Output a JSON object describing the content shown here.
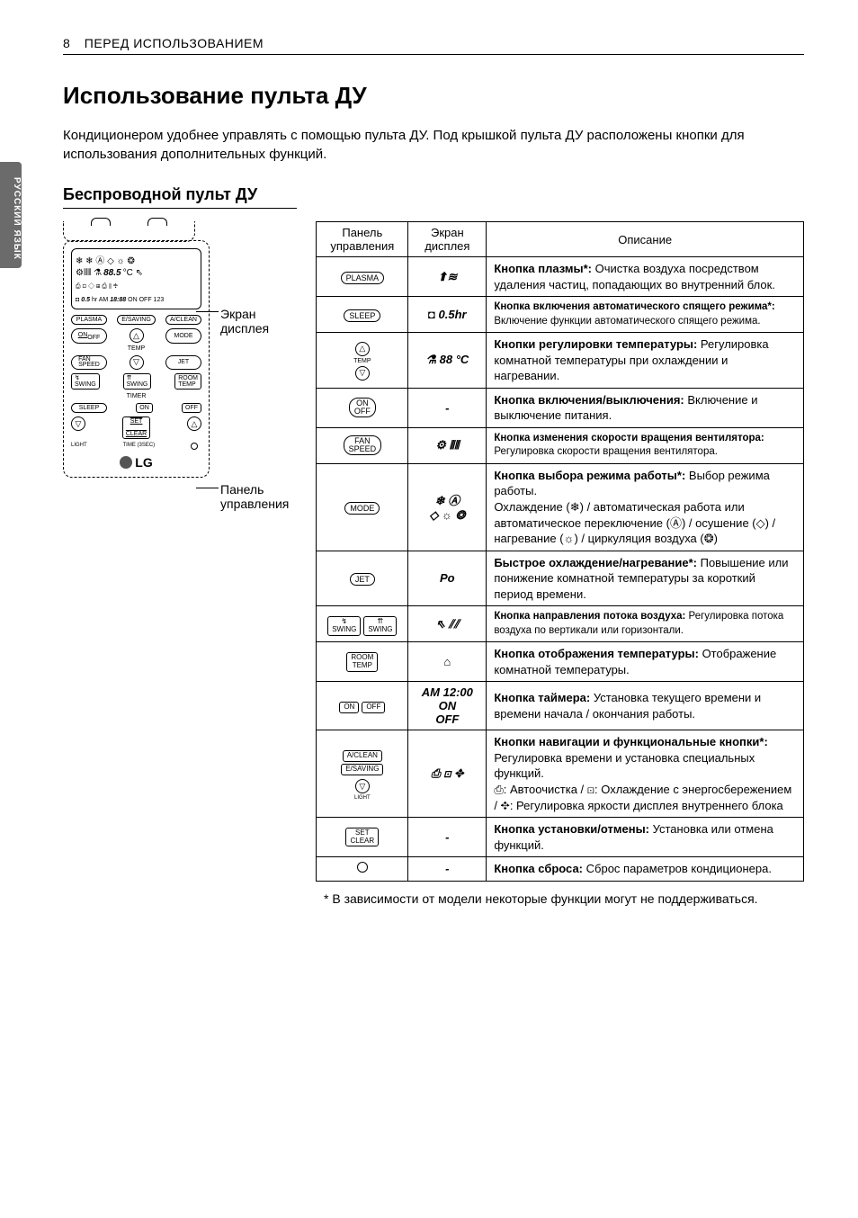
{
  "page": {
    "number": "8",
    "section": "ПЕРЕД ИСПОЛЬЗОВАНИЕМ"
  },
  "sideTab": "РУССКИЙ ЯЗЫК",
  "title": "Использование пульта ДУ",
  "intro": "Кондиционером удобнее управлять с помощью пульта ДУ. Под крышкой пульта ДУ расположены кнопки для использования дополнительных функций.",
  "subheading": "Беспроводной пульт ДУ",
  "callouts": {
    "screen": "Экран\nдисплея",
    "panel": "Панель\nуправления"
  },
  "tableHeaders": {
    "panel": "Панель управления",
    "screen": "Экран дисплея",
    "desc": "Описание"
  },
  "remoteLabels": {
    "plasma": "PLASMA",
    "esaving": "E/SAVING",
    "aclean": "A/CLEAN",
    "onoff": "ON\nOFF",
    "mode": "MODE",
    "temp": "TEMP",
    "fanspeed": "FAN\nSPEED",
    "jet": "JET",
    "swing": "SWING",
    "roomtemp": "ROOM\nTEMP",
    "timer": "TIMER",
    "sleep": "SLEEP",
    "on": "ON",
    "off": "OFF",
    "setclear": "SET\nCLEAR",
    "light": "LIGHT",
    "timesec": "TIME (3SEC)",
    "lg": "LG"
  },
  "rows": [
    {
      "panelType": "pill",
      "panelText": "PLASMA",
      "screen": "⬆≋",
      "descBold": "Кнопка плазмы*:",
      "descRest": "  Очистка воздуха посредством удаления частиц, попадающих во внутренний блок."
    },
    {
      "panelType": "pill",
      "panelText": "SLEEP",
      "screen": "◘ 0.5hr",
      "descBold": "Кнопка включения автоматического спящего режима*:",
      "descRest": " Включение функции автоматического спящего режима.",
      "small": true
    },
    {
      "panelType": "temp",
      "screen": "⚗ 88 °C",
      "descBold": "Кнопки регулировки температуры:",
      "descRest": " Регулировка комнатной температуры при охлаждении и нагревании."
    },
    {
      "panelType": "pill-stack",
      "panelText": "ON\nOFF",
      "screen": "-",
      "descBold": "Кнопка включения/выключения:",
      "descRest": " Включение и выключение питания."
    },
    {
      "panelType": "pill-stack",
      "panelText": "FAN\nSPEED",
      "screen": "⚙ ⫴⫴",
      "descBold": "Кнопка изменения скорости вращения вентилятора:",
      "descRest": " Регулировка скорости вращения вентилятора.",
      "small": true
    },
    {
      "panelType": "pill",
      "panelText": "MODE",
      "screen": "❄ Ⓐ\n◇ ☼ ❂",
      "descBold": "Кнопка выбора режима работы*:",
      "descRest": " Выбор режима работы.\nОхлаждение (❄) / автоматическая работа или автоматическое переключение (Ⓐ) / осушение (◇) / нагревание (☼) / циркуляция воздуха (❂)"
    },
    {
      "panelType": "pill",
      "panelText": "JET",
      "screen": "Po",
      "descBold": "Быстрое охлаждение/нагревание*:",
      "descRest": "  Повышение или понижение комнатной температуры за короткий период времени."
    },
    {
      "panelType": "swing",
      "screen": "⇖ ⫽⫽",
      "descBold": "Кнопка направления потока воздуха:",
      "descRest": " Регулировка потока воздуха по вертикали или горизонтали.",
      "small": true
    },
    {
      "panelType": "sq-stack",
      "panelText": "ROOM\nTEMP",
      "screen": "⌂",
      "descBold": "Кнопка отображения температуры:",
      "descRest": " Отображение комнатной температуры."
    },
    {
      "panelType": "onoff",
      "screen": "AM 12:00 ON\nOFF",
      "descBold": "Кнопка таймера:",
      "descRest": " Установка текущего времени и времени начала / окончания работы."
    },
    {
      "panelType": "nav",
      "screen": "⎙ ⊡ ✥",
      "descBold": "Кнопки навигации и функциональные кнопки*:",
      "descRest": " Регулировка времени и установка специальных функций.\n⎙: Автоочистка / ⊡: Охлаждение с энергосбережением / ✥: Регулировка яркости дисплея внутреннего блока"
    },
    {
      "panelType": "sq-stack",
      "panelText": "SET\nCLEAR",
      "screen": "-",
      "descBold": "Кнопка установки/отмены:",
      "descRest": " Установка или отмена функций."
    },
    {
      "panelType": "reset",
      "screen": "-",
      "descBold": "Кнопка сброса:",
      "descRest": " Сброс параметров кондиционера."
    }
  ],
  "footnote": "* В зависимости от модели некоторые функции могут не поддерживаться."
}
